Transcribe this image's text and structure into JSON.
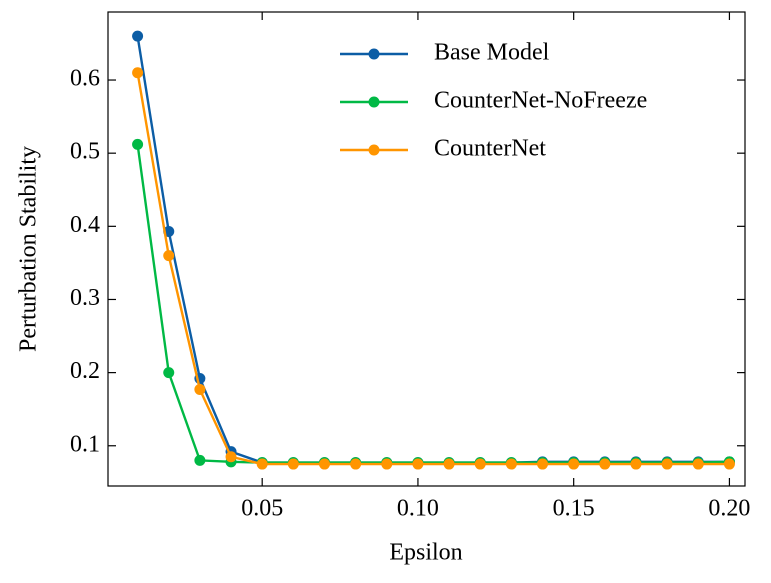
{
  "chart_data": {
    "type": "line",
    "xlabel": "Epsilon",
    "ylabel": "Perturbation Stability",
    "x": [
      0.01,
      0.02,
      0.03,
      0.04,
      0.05,
      0.06,
      0.07,
      0.08,
      0.09,
      0.1,
      0.11,
      0.12,
      0.13,
      0.14,
      0.15,
      0.16,
      0.17,
      0.18,
      0.19,
      0.2
    ],
    "series": [
      {
        "name": "Base Model",
        "color": "#0C5DA5",
        "values": [
          0.66,
          0.393,
          0.192,
          0.092,
          0.077,
          0.077,
          0.077,
          0.077,
          0.077,
          0.077,
          0.077,
          0.077,
          0.077,
          0.078,
          0.078,
          0.078,
          0.078,
          0.078,
          0.078,
          0.078
        ]
      },
      {
        "name": "CounterNet-NoFreeze",
        "color": "#00B945",
        "values": [
          0.512,
          0.2,
          0.08,
          0.078,
          0.077,
          0.077,
          0.077,
          0.077,
          0.077,
          0.077,
          0.077,
          0.077,
          0.077,
          0.077,
          0.077,
          0.077,
          0.077,
          0.077,
          0.077,
          0.078
        ]
      },
      {
        "name": "CounterNet",
        "color": "#FF9500",
        "values": [
          0.61,
          0.36,
          0.177,
          0.085,
          0.075,
          0.075,
          0.075,
          0.075,
          0.075,
          0.075,
          0.075,
          0.075,
          0.075,
          0.075,
          0.075,
          0.075,
          0.075,
          0.075,
          0.075,
          0.075
        ]
      }
    ],
    "xlim": [
      0.0005,
      0.205
    ],
    "ylim": [
      0.045,
      0.693
    ],
    "xticks": [
      0.05,
      {
        "value": 0.1,
        "label": "0.10"
      },
      0.15,
      {
        "value": 0.2,
        "label": "0.20"
      }
    ],
    "yticks": [
      0.1,
      0.2,
      0.3,
      0.4,
      0.5,
      0.6
    ],
    "legend": "upper right",
    "grid": false
  }
}
